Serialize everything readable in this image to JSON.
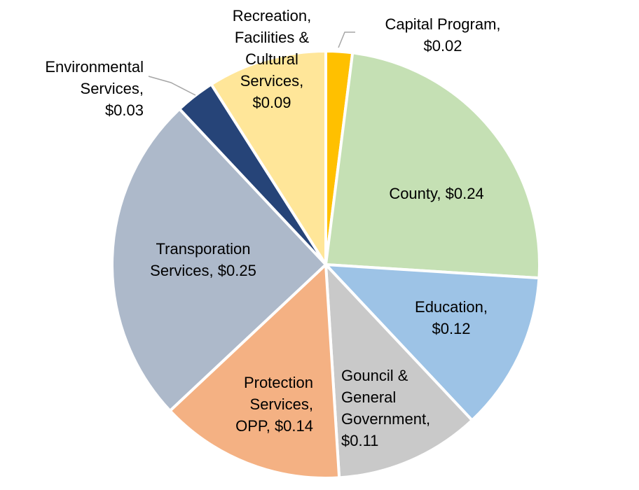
{
  "chart_data": {
    "type": "pie",
    "slices": [
      {
        "name": "Capital Program",
        "value": 0.02,
        "label_lines": [
          "Capital Program,",
          "$0.02"
        ],
        "color": "#FFC000"
      },
      {
        "name": "County",
        "value": 0.24,
        "label_lines": [
          "County, $0.24"
        ],
        "color": "#C5E0B4"
      },
      {
        "name": "Education",
        "value": 0.12,
        "label_lines": [
          "Education,",
          "$0.12"
        ],
        "color": "#9DC3E6"
      },
      {
        "name": "Gouncil & General Government",
        "value": 0.11,
        "label_lines": [
          "Gouncil &",
          "General",
          "Government,",
          "$0.11"
        ],
        "color": "#C9C9C9"
      },
      {
        "name": "Protection Services, OPP",
        "value": 0.14,
        "label_lines": [
          "Protection",
          "Services,",
          "OPP, $0.14"
        ],
        "color": "#F4B183"
      },
      {
        "name": "Transporation Services",
        "value": 0.25,
        "label_lines": [
          "Transporation",
          "Services, $0.25"
        ],
        "color": "#ADB9CA"
      },
      {
        "name": "Environmental Services",
        "value": 0.03,
        "label_lines": [
          "Environmental",
          "Services,",
          "$0.03"
        ],
        "color": "#264478"
      },
      {
        "name": "Recreation, Facilities & Cultural Services",
        "value": 0.09,
        "label_lines": [
          "Recreation,",
          "Facilities &",
          "Cultural",
          "Services,",
          "$0.09"
        ],
        "color": "#FFE699"
      }
    ],
    "start": "12 o'clock",
    "direction": "clockwise",
    "legend": "none",
    "data_labels": "category name and value"
  }
}
